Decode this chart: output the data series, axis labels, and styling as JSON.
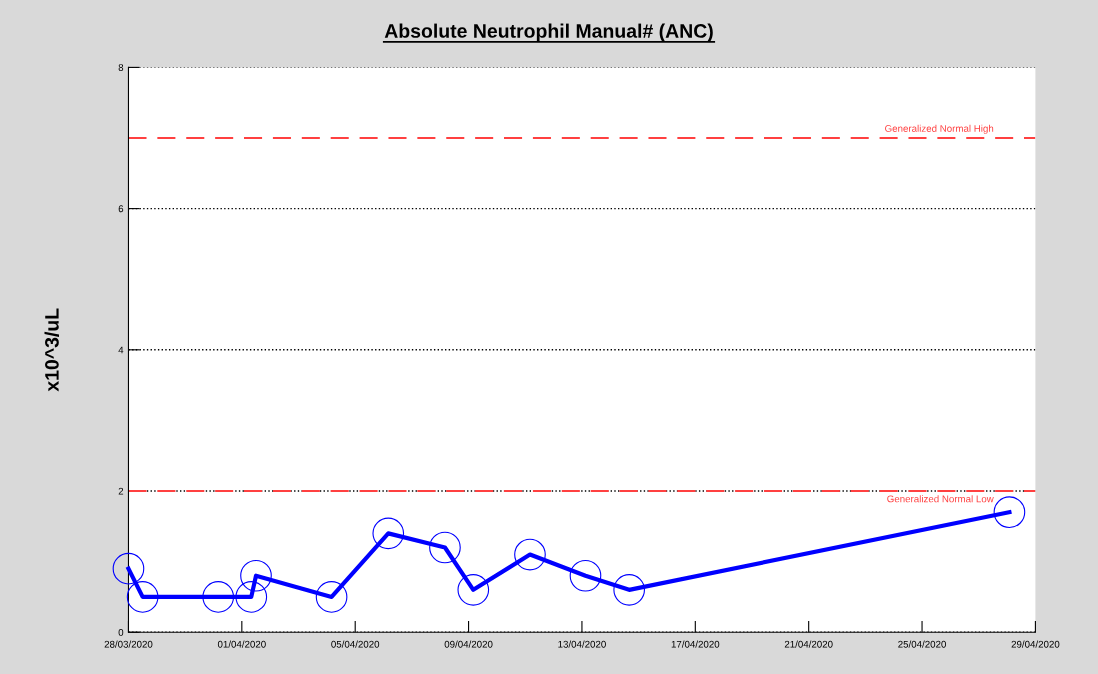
{
  "chart_data": {
    "type": "line",
    "title": "Absolute Neutrophil Manual# (ANC)",
    "ylabel": "x10^3/uL",
    "series": [
      {
        "color": "#0000ff",
        "x": [
          "2020-03-28T00:00",
          "2020-03-28T12:00",
          "2020-03-31T04:00",
          "2020-04-01T08:00",
          "2020-04-01T12:00",
          "2020-04-04T04:00",
          "2020-04-06T04:00",
          "2020-04-08T04:00",
          "2020-04-09T04:00",
          "2020-04-11T04:00",
          "2020-04-13T03:00",
          "2020-04-14T16:00",
          "2020-04-28T02:00"
        ],
        "values": [
          0.9,
          0.5,
          0.5,
          0.5,
          0.8,
          0.5,
          1.4,
          1.2,
          0.6,
          1.1,
          0.8,
          0.6,
          1.7
        ]
      }
    ],
    "xlim": [
      "2020-03-28",
      "2020-04-29"
    ],
    "xticks": [
      {
        "value": "2020-03-28",
        "label": "28/03/2020"
      },
      {
        "value": "2020-04-01",
        "label": "01/04/2020"
      },
      {
        "value": "2020-04-05",
        "label": "05/04/2020"
      },
      {
        "value": "2020-04-09",
        "label": "09/04/2020"
      },
      {
        "value": "2020-04-13",
        "label": "13/04/2020"
      },
      {
        "value": "2020-04-17",
        "label": "17/04/2020"
      },
      {
        "value": "2020-04-21",
        "label": "21/04/2020"
      },
      {
        "value": "2020-04-25",
        "label": "25/04/2020"
      },
      {
        "value": "2020-04-29",
        "label": "29/04/2020"
      }
    ],
    "ylim": [
      0,
      8
    ],
    "yticks": [
      0,
      2,
      4,
      6,
      8
    ],
    "grid": "y",
    "marker": "circle",
    "line_style": "solid",
    "ref_lines": [
      {
        "axis": "y",
        "value": 7,
        "label": "Generalized Normal High",
        "color": "#ff4040",
        "line_style": "dashed"
      },
      {
        "axis": "y",
        "value": 2,
        "label": "Generalized Normal Low",
        "color": "#ff4040",
        "line_style": "dashed"
      }
    ]
  }
}
